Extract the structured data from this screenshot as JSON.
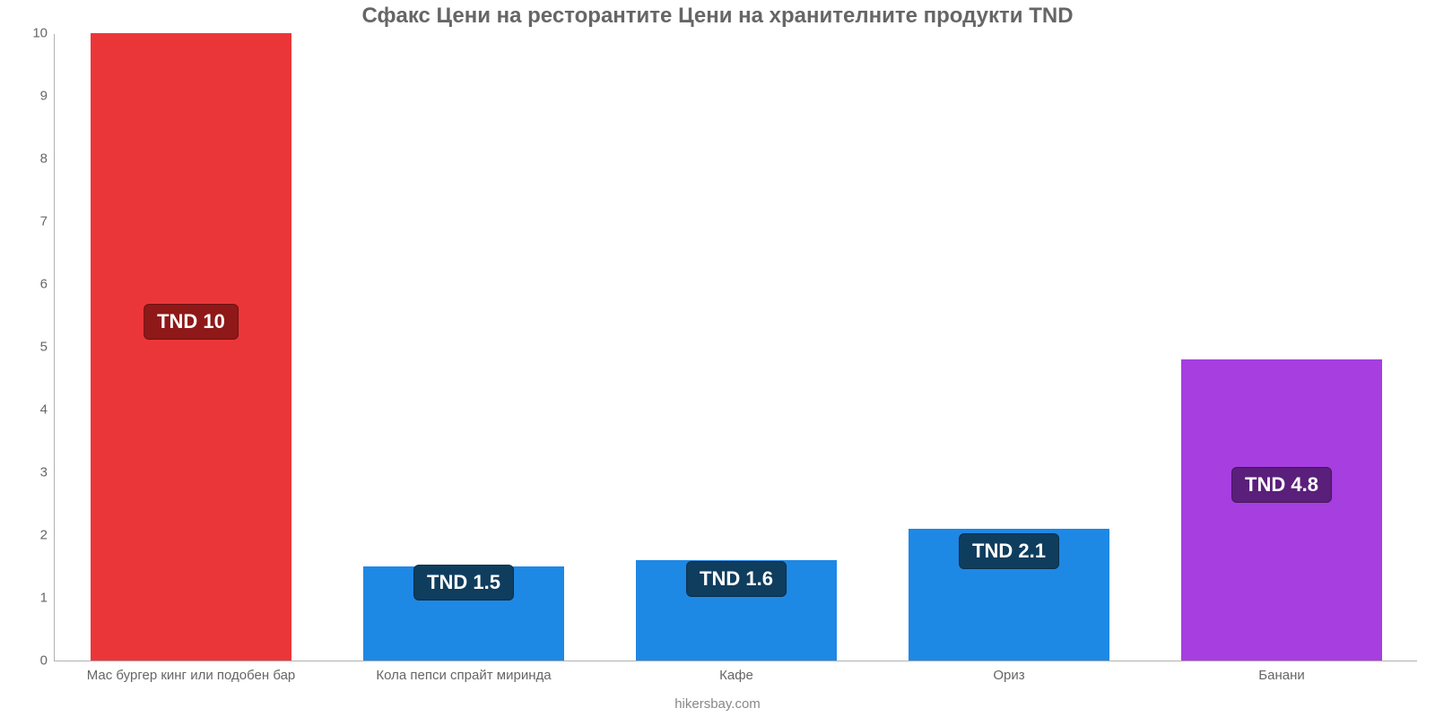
{
  "chart": {
    "type": "bar",
    "title": "Сфакс Цени на ресторантите Цени на хранителните продукти TND",
    "title_fontsize": 24,
    "title_color": "#666666",
    "footer": "hikersbay.com",
    "footer_color": "#888888",
    "background_color": "#ffffff",
    "axis_color": "#b0b0b0",
    "tick_color": "#666666",
    "tick_fontsize": 15,
    "ylim": [
      0,
      10
    ],
    "ytick_step": 1,
    "bar_width_ratio": 0.74,
    "label_fontsize": 22,
    "categories": [
      "Мас бургер кинг или подобен бар",
      "Кола пепси спрайт миринда",
      "Кафе",
      "Ориз",
      "Банани"
    ],
    "values": [
      10,
      1.5,
      1.6,
      2.1,
      4.8
    ],
    "value_labels": [
      "TND 10",
      "TND 1.5",
      "TND 1.6",
      "TND 2.1",
      "TND 4.8"
    ],
    "bar_colors": [
      "#eb3639",
      "#1e88e5",
      "#1e88e5",
      "#1e88e5",
      "#a63ee0"
    ],
    "label_box_colors": [
      "#8f1818",
      "#0f3d5e",
      "#0f3d5e",
      "#0f3d5e",
      "#5a1f7a"
    ],
    "label_y_values": [
      5.4,
      1.25,
      1.3,
      1.75,
      2.8
    ]
  }
}
